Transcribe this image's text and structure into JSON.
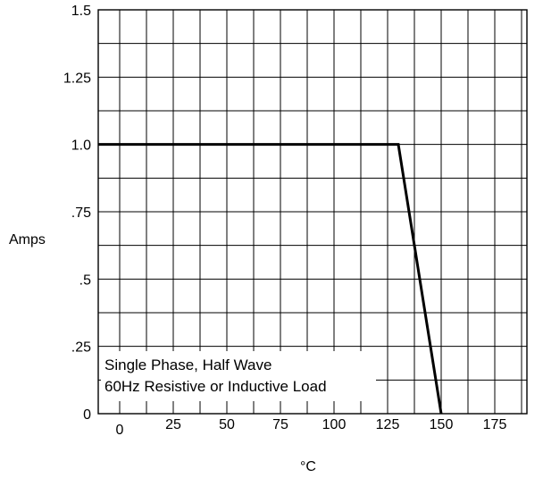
{
  "chart_data": {
    "type": "line",
    "xlabel": "°C",
    "ylabel": "Amps",
    "xlim": [
      -10,
      190
    ],
    "ylim": [
      0,
      1.5
    ],
    "x_ticks": [
      {
        "value": 0,
        "label": "0"
      },
      {
        "value": 25,
        "label": "25"
      },
      {
        "value": 50,
        "label": "50"
      },
      {
        "value": 75,
        "label": "75"
      },
      {
        "value": 100,
        "label": "100"
      },
      {
        "value": 125,
        "label": "125"
      },
      {
        "value": 150,
        "label": "150"
      },
      {
        "value": 175,
        "label": "175"
      }
    ],
    "y_ticks": [
      {
        "value": 0,
        "label": "0"
      },
      {
        "value": 0.25,
        "label": ".25"
      },
      {
        "value": 0.5,
        "label": ".5"
      },
      {
        "value": 0.75,
        "label": ".75"
      },
      {
        "value": 1.0,
        "label": "1.0"
      },
      {
        "value": 1.25,
        "label": "1.25"
      },
      {
        "value": 1.5,
        "label": "1.5"
      }
    ],
    "x_grid_step": 12.5,
    "y_grid_step": 0.125,
    "grid": true,
    "legend": "none",
    "annotation": [
      "Single Phase, Half Wave",
      "60Hz Resistive or Inductive Load"
    ],
    "series": [
      {
        "x": [
          -10,
          130,
          150
        ],
        "y": [
          1.0,
          1.0,
          0
        ],
        "color": "#000000"
      }
    ]
  }
}
